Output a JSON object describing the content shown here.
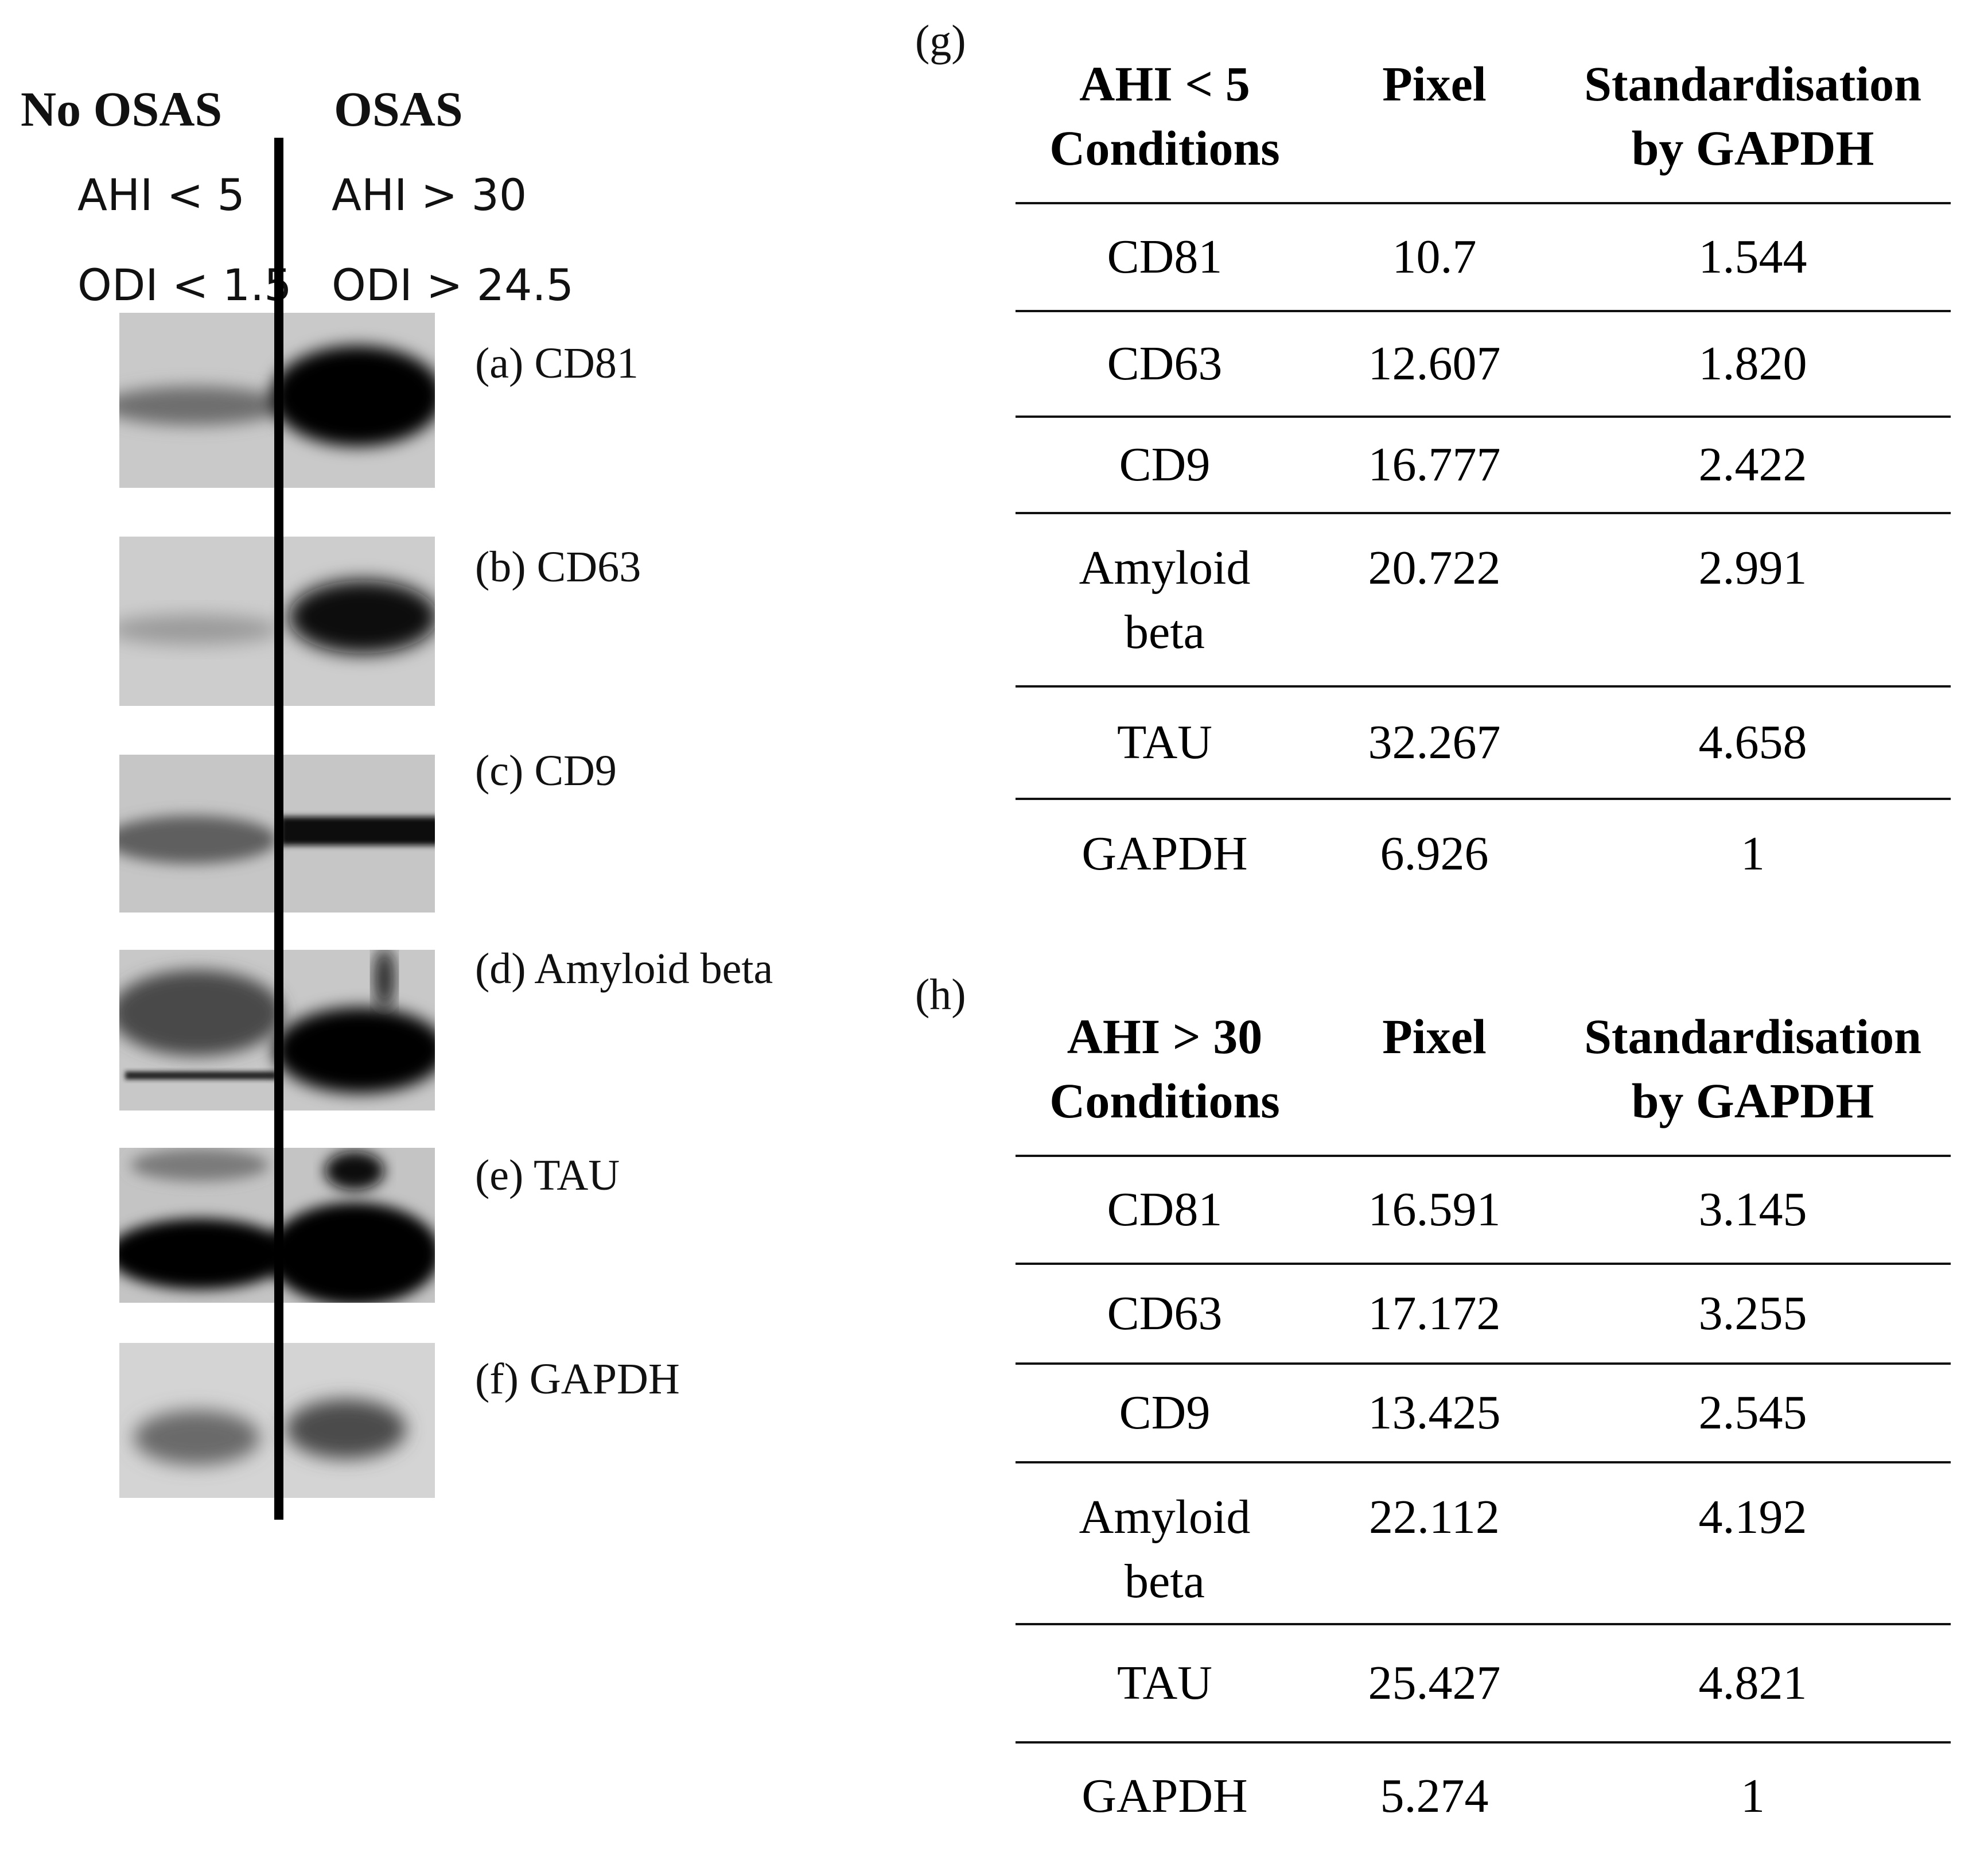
{
  "blot": {
    "left_header": "No OSAS",
    "right_header": "OSAS",
    "left_conditions": [
      "AHI < 5",
      "ODI < 1.5"
    ],
    "right_conditions": [
      "AHI > 30",
      "ODI > 24.5"
    ],
    "panels": [
      {
        "label": "(a) CD81"
      },
      {
        "label": "(b)  CD63"
      },
      {
        "label": "(c) CD9"
      },
      {
        "label": "(d)  Amyloid beta"
      },
      {
        "label": "(e)  TAU"
      },
      {
        "label": "(f)  GAPDH"
      }
    ]
  },
  "table_g": {
    "panel_label": "(g)",
    "headers": [
      "AHI < 5",
      "Conditions",
      "Pixel",
      "Standardisation",
      "by GAPDH"
    ],
    "rows": [
      {
        "condition": "CD81",
        "pixel": "10.7",
        "standardisation": "1.544"
      },
      {
        "condition": "CD63",
        "pixel": "12.607",
        "standardisation": "1.820"
      },
      {
        "condition": "CD9",
        "pixel": "16.777",
        "standardisation": "2.422"
      },
      {
        "condition": "Amyloid beta",
        "condition_lines": [
          "Amyloid",
          "beta"
        ],
        "pixel": "20.722",
        "standardisation": "2.991"
      },
      {
        "condition": "TAU",
        "pixel": "32.267",
        "standardisation": "4.658"
      },
      {
        "condition": "GAPDH",
        "pixel": "6.926",
        "standardisation": "1"
      }
    ]
  },
  "table_h": {
    "panel_label": "(h)",
    "headers": [
      "AHI > 30",
      "Conditions",
      "Pixel",
      "Standardisation",
      "by GAPDH"
    ],
    "rows": [
      {
        "condition": "CD81",
        "pixel": "16.591",
        "standardisation": "3.145"
      },
      {
        "condition": "CD63",
        "pixel": "17.172",
        "standardisation": "3.255"
      },
      {
        "condition": "CD9",
        "pixel": "13.425",
        "standardisation": "2.545"
      },
      {
        "condition": "Amyloid beta",
        "condition_lines": [
          "Amyloid",
          "beta"
        ],
        "pixel": "22.112",
        "standardisation": "4.192"
      },
      {
        "condition": "TAU",
        "pixel": "25.427",
        "standardisation": "4.821"
      },
      {
        "condition": "GAPDH",
        "pixel": "5.274",
        "standardisation": "1"
      }
    ]
  }
}
